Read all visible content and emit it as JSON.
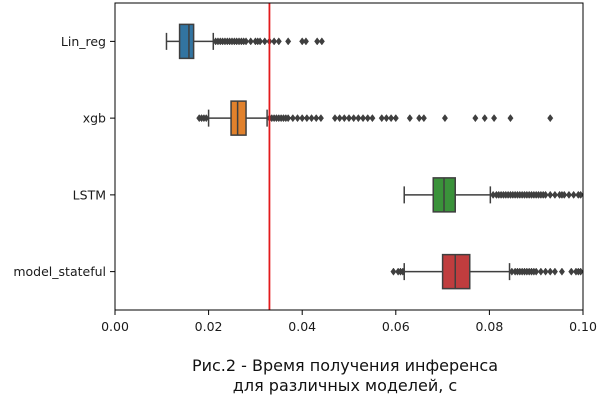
{
  "chart_data": {
    "type": "boxplot",
    "orientation": "horizontal",
    "title": "",
    "xlim": [
      0.0,
      0.1
    ],
    "x_ticks": [
      "0.00",
      "0.02",
      "0.04",
      "0.06",
      "0.08",
      "0.10"
    ],
    "x_tick_values": [
      0.0,
      0.02,
      0.04,
      0.06,
      0.08,
      0.1
    ],
    "grid": false,
    "reference_line": {
      "x": 0.033,
      "color": "#e31a1c"
    },
    "series": [
      {
        "name": "Lin_reg",
        "color": "#3274a1",
        "whisker_low": 0.011,
        "q1": 0.0138,
        "median": 0.0158,
        "q3": 0.0168,
        "whisker_high": 0.021,
        "outliers": [
          0.0215,
          0.022,
          0.0225,
          0.023,
          0.0235,
          0.024,
          0.0245,
          0.025,
          0.0255,
          0.026,
          0.0265,
          0.027,
          0.0275,
          0.028,
          0.029,
          0.03,
          0.0305,
          0.031,
          0.032,
          0.033,
          0.034,
          0.035,
          0.037,
          0.04,
          0.0408,
          0.0432,
          0.0442
        ]
      },
      {
        "name": "xgb",
        "color": "#e1812c",
        "whisker_low": 0.02,
        "q1": 0.0248,
        "median": 0.0262,
        "q3": 0.028,
        "whisker_high": 0.0325,
        "outliers": [
          0.018,
          0.0185,
          0.019,
          0.0195,
          0.033,
          0.0335,
          0.034,
          0.0345,
          0.035,
          0.0355,
          0.036,
          0.0365,
          0.037,
          0.038,
          0.039,
          0.04,
          0.041,
          0.042,
          0.043,
          0.044,
          0.047,
          0.048,
          0.049,
          0.05,
          0.051,
          0.052,
          0.053,
          0.054,
          0.055,
          0.057,
          0.058,
          0.059,
          0.06,
          0.063,
          0.065,
          0.066,
          0.0705,
          0.077,
          0.079,
          0.081,
          0.0845,
          0.093
        ]
      },
      {
        "name": "LSTM",
        "color": "#3a923a",
        "whisker_low": 0.0618,
        "q1": 0.068,
        "median": 0.0703,
        "q3": 0.0727,
        "whisker_high": 0.0802,
        "outliers": [
          0.0808,
          0.0815,
          0.082,
          0.0825,
          0.083,
          0.0835,
          0.084,
          0.0845,
          0.085,
          0.0855,
          0.086,
          0.0865,
          0.087,
          0.0875,
          0.088,
          0.0885,
          0.089,
          0.0895,
          0.09,
          0.0905,
          0.091,
          0.0915,
          0.092,
          0.093,
          0.094,
          0.095,
          0.0955,
          0.096,
          0.097,
          0.098,
          0.099,
          0.0995
        ]
      },
      {
        "name": "model_stateful",
        "color": "#c03d3e",
        "whisker_low": 0.0618,
        "q1": 0.07,
        "median": 0.0727,
        "q3": 0.0758,
        "whisker_high": 0.0843,
        "outliers": [
          0.0595,
          0.0605,
          0.061,
          0.0615,
          0.0848,
          0.0855,
          0.086,
          0.0865,
          0.087,
          0.0875,
          0.088,
          0.0885,
          0.089,
          0.0895,
          0.09,
          0.091,
          0.092,
          0.093,
          0.094,
          0.0955,
          0.0975,
          0.0985,
          0.099,
          0.0995
        ]
      }
    ]
  },
  "caption": {
    "line1": "Рис.2 - Время получения инференса",
    "line2": "для различных моделей, с"
  }
}
